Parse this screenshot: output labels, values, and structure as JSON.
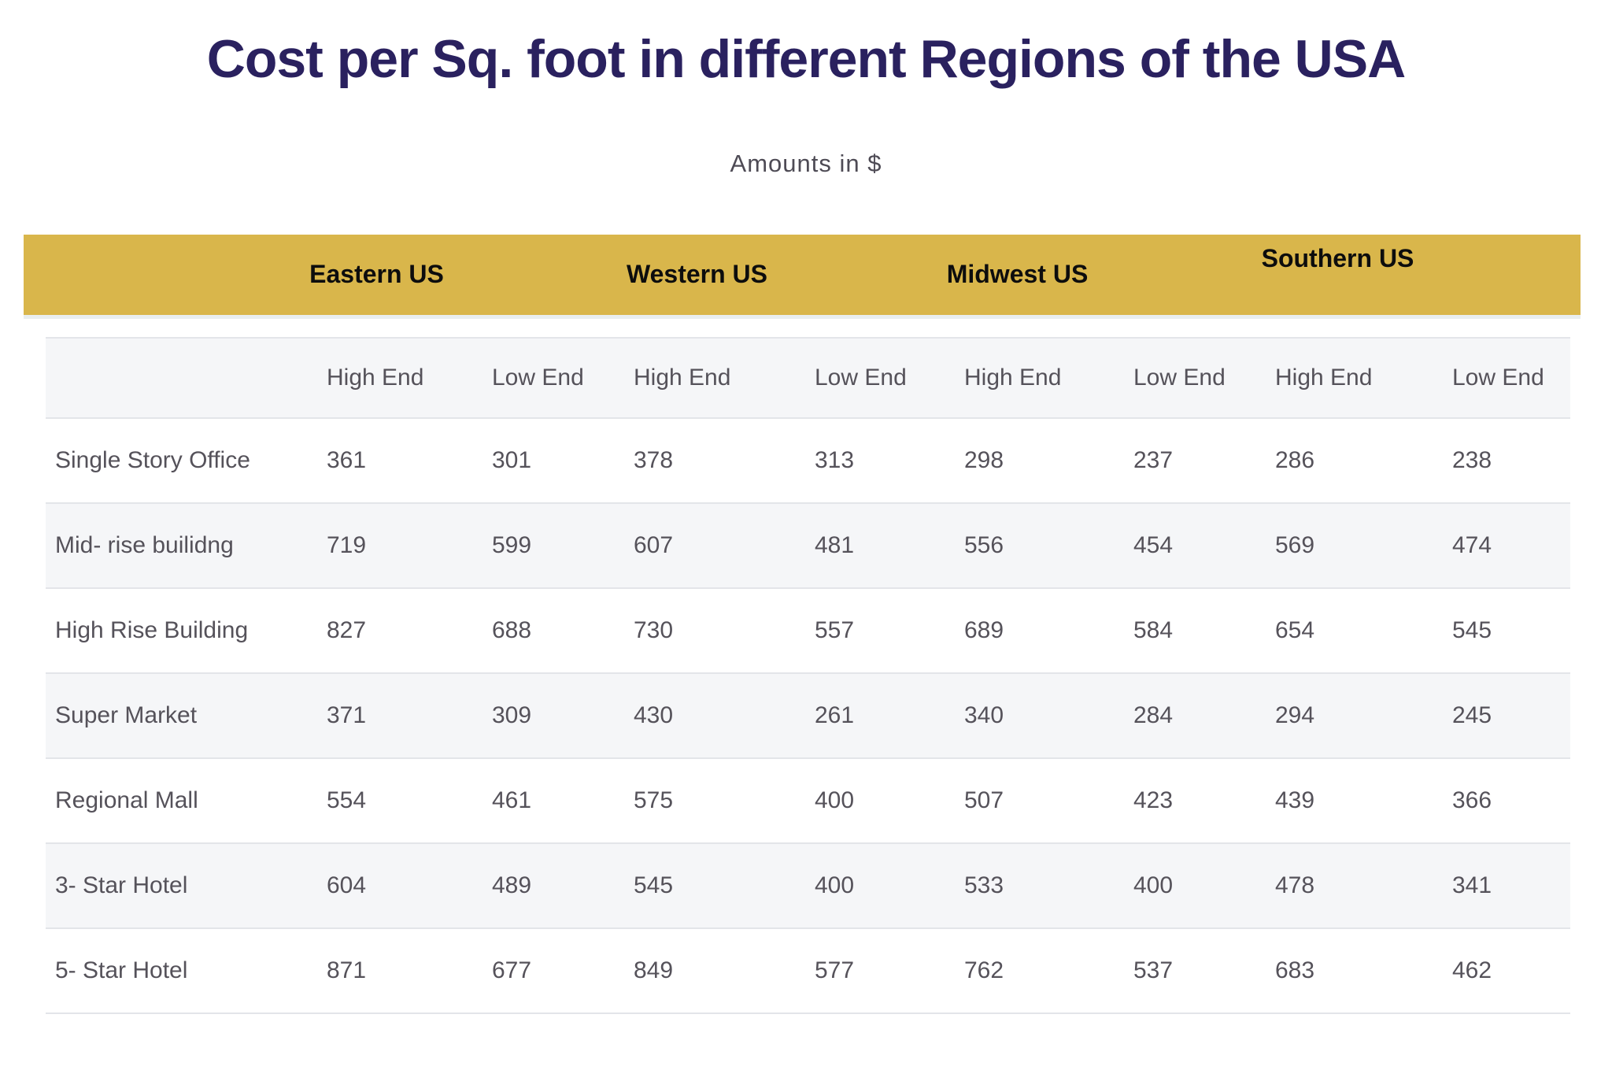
{
  "header": {
    "title": "Cost per Sq. foot in different Regions of the USA",
    "subtitle": "Amounts in $"
  },
  "table": {
    "regions": [
      "Eastern US",
      "Western US",
      "Midwest US",
      "Southern US"
    ],
    "sub_headers": [
      "High End",
      "Low End",
      "High End",
      "Low End",
      "High End",
      "Low End",
      "High End",
      "Low End"
    ],
    "rows": [
      {
        "label": "Single Story Office",
        "values": [
          361,
          301,
          378,
          313,
          298,
          237,
          286,
          238
        ]
      },
      {
        "label": "Mid- rise builidng",
        "values": [
          719,
          599,
          607,
          481,
          556,
          454,
          569,
          474
        ]
      },
      {
        "label": "High Rise Building",
        "values": [
          827,
          688,
          730,
          557,
          689,
          584,
          654,
          545
        ]
      },
      {
        "label": "Super Market",
        "values": [
          371,
          309,
          430,
          261,
          340,
          284,
          294,
          245
        ]
      },
      {
        "label": "Regional Mall",
        "values": [
          554,
          461,
          575,
          400,
          507,
          423,
          439,
          366
        ]
      },
      {
        "label": "3- Star Hotel",
        "values": [
          604,
          489,
          545,
          400,
          533,
          400,
          478,
          341
        ]
      },
      {
        "label": "5- Star Hotel",
        "values": [
          871,
          677,
          849,
          577,
          762,
          537,
          683,
          462
        ]
      }
    ]
  },
  "colors": {
    "band_gold": "#D9B64B",
    "title_navy": "#2A215F",
    "body_text": "#55525A",
    "region_text": "#0D0D0D",
    "row_alt_bg": "#F5F6F8",
    "row_border": "#E3E5E9"
  },
  "chart_data": {
    "type": "table",
    "title": "Cost per Sq. foot in different Regions of the USA",
    "subtitle": "Amounts in $",
    "unit": "USD per square foot",
    "column_groups": [
      {
        "name": "Eastern US",
        "columns": [
          "High End",
          "Low End"
        ]
      },
      {
        "name": "Western US",
        "columns": [
          "High End",
          "Low End"
        ]
      },
      {
        "name": "Midwest US",
        "columns": [
          "High End",
          "Low End"
        ]
      },
      {
        "name": "Southern US",
        "columns": [
          "High End",
          "Low End"
        ]
      }
    ],
    "row_labels": [
      "Single Story Office",
      "Mid- rise builidng",
      "High Rise Building",
      "Super Market",
      "Regional Mall",
      "3- Star Hotel",
      "5- Star Hotel"
    ],
    "values": [
      [
        361,
        301,
        378,
        313,
        298,
        237,
        286,
        238
      ],
      [
        719,
        599,
        607,
        481,
        556,
        454,
        569,
        474
      ],
      [
        827,
        688,
        730,
        557,
        689,
        584,
        654,
        545
      ],
      [
        371,
        309,
        430,
        261,
        340,
        284,
        294,
        245
      ],
      [
        554,
        461,
        575,
        400,
        507,
        423,
        439,
        366
      ],
      [
        604,
        489,
        545,
        400,
        533,
        400,
        478,
        341
      ],
      [
        871,
        677,
        849,
        577,
        762,
        537,
        683,
        462
      ]
    ]
  }
}
